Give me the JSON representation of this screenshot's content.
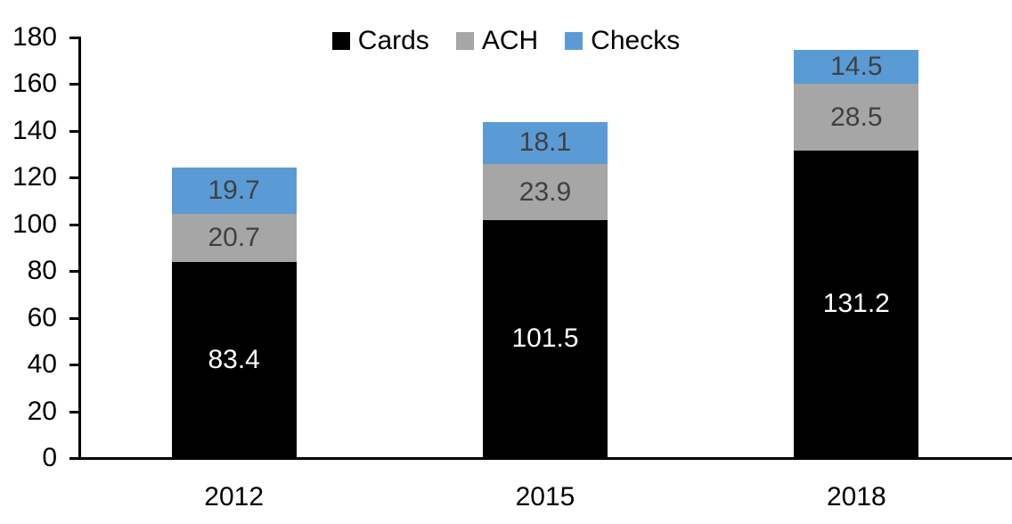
{
  "chart_data": {
    "type": "bar",
    "stacked": true,
    "title": "",
    "xlabel": "",
    "ylabel": "",
    "categories": [
      "2012",
      "2015",
      "2018"
    ],
    "series": [
      {
        "name": "Cards",
        "color": "#000000",
        "label_color": "#ffffff",
        "values": [
          83.4,
          101.5,
          131.2
        ]
      },
      {
        "name": "ACH",
        "color": "#a6a6a6",
        "label_color": "#404040",
        "values": [
          20.7,
          23.9,
          28.5
        ]
      },
      {
        "name": "Checks",
        "color": "#5b9bd5",
        "label_color": "#404040",
        "values": [
          19.7,
          18.1,
          14.5
        ]
      }
    ],
    "totals": [
      123.8,
      143.5,
      174.2
    ],
    "ylim": [
      0,
      180
    ],
    "ytick_step": 20,
    "yticks": [
      0,
      20,
      40,
      60,
      80,
      100,
      120,
      140,
      160,
      180
    ],
    "legend_position": "top-center",
    "legend_entries": [
      "Cards",
      "ACH",
      "Checks"
    ],
    "grid": false,
    "axis_color": "#000000",
    "background_color": "#ffffff"
  }
}
